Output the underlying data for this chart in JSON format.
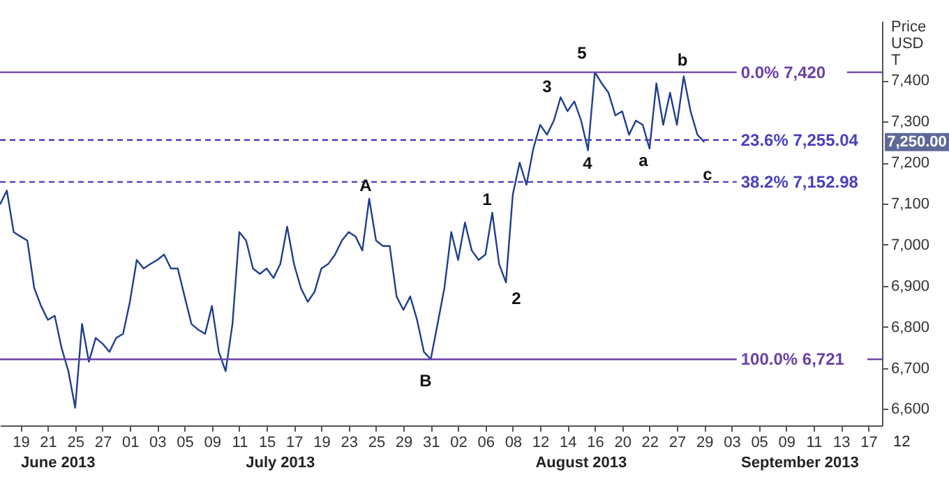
{
  "chart_data": {
    "type": "line",
    "ylabel": "Price USD T",
    "categories": [
      null,
      null,
      null,
      "19",
      null,
      null,
      null,
      "21",
      null,
      null,
      null,
      "25",
      null,
      null,
      null,
      "27",
      null,
      null,
      null,
      "01",
      null,
      null,
      null,
      "03",
      null,
      null,
      null,
      "05",
      null,
      null,
      null,
      "09",
      null,
      null,
      null,
      "11",
      null,
      null,
      null,
      "15",
      null,
      null,
      null,
      "17",
      null,
      null,
      null,
      "19",
      null,
      null,
      null,
      "23",
      null,
      null,
      null,
      "25",
      null,
      null,
      null,
      "29",
      null,
      null,
      null,
      "31",
      null,
      null,
      null,
      "02",
      null,
      null,
      null,
      "06",
      null,
      null,
      null,
      "08",
      null,
      null,
      null,
      "12",
      null,
      null,
      null,
      "14",
      null,
      null,
      null,
      "16",
      null,
      null,
      null,
      "20",
      null,
      null,
      null,
      "22",
      null,
      null,
      null,
      "27",
      null,
      null,
      null,
      "29",
      null,
      null,
      null,
      "03",
      null,
      null,
      null,
      "05",
      null,
      null,
      null,
      "09",
      null,
      null,
      null,
      "11",
      null,
      null,
      null,
      "13",
      null,
      null,
      null,
      "17",
      null
    ],
    "series": [
      {
        "color": "#1f3f8f",
        "values": [
          7098,
          7132,
          7031,
          7020,
          7010,
          6895,
          6851,
          6817,
          6827,
          6749,
          6692,
          6603,
          6807,
          6715,
          6773,
          6759,
          6739,
          6773,
          6783,
          6861,
          6963,
          6942,
          6953,
          6963,
          6976,
          6942,
          6942,
          6874,
          6807,
          6793,
          6783,
          6851,
          6739,
          6692,
          6807,
          7031,
          7010,
          6942,
          6929,
          6942,
          6919,
          6953,
          7044,
          6953,
          6895,
          6861,
          6885,
          6942,
          6953,
          6976,
          7010,
          7031,
          7020,
          6986,
          7112,
          7010,
          6997,
          6997,
          6874,
          6841,
          6874,
          6817,
          6739,
          6721,
          6807,
          6895,
          7031,
          6963,
          7054,
          6986,
          6963,
          6976,
          7078,
          6953,
          6908,
          7122,
          7200,
          7146,
          7234,
          7292,
          7268,
          7302,
          7359,
          7325,
          7349,
          7302,
          7230,
          7420,
          7393,
          7370,
          7315,
          7325,
          7268,
          7302,
          7292,
          7234,
          7393,
          7292,
          7370,
          7292,
          7410,
          7325,
          7268,
          7250,
          null,
          null,
          null,
          null,
          null,
          null,
          null,
          null,
          null,
          null,
          null,
          null,
          null,
          null,
          null,
          null,
          null,
          null,
          null,
          null,
          null,
          null,
          null,
          null,
          null
        ]
      }
    ],
    "ylim": [
      6560,
      7545
    ],
    "yticks": [
      {
        "value": 6600,
        "label": "6,600"
      },
      {
        "value": 6700,
        "label": "6,700"
      },
      {
        "value": 6800,
        "label": "6,800"
      },
      {
        "value": 6900,
        "label": "6,900"
      },
      {
        "value": 7000,
        "label": "7,000"
      },
      {
        "value": 7100,
        "label": "7,100"
      },
      {
        "value": 7200,
        "label": "7,200"
      },
      {
        "value": 7300,
        "label": "7,300"
      },
      {
        "value": 7400,
        "label": "7,400"
      }
    ],
    "grid": false,
    "ref_lines": [
      {
        "axis": "y",
        "value": 7420,
        "label": "0.0% 7,420",
        "color": "#6a3fa8",
        "line_style": "solid"
      },
      {
        "axis": "y",
        "value": 7255.04,
        "label": "23.6% 7,255.04",
        "color": "#4a3fc0",
        "line_style": "dashed"
      },
      {
        "axis": "y",
        "value": 7152.98,
        "label": "38.2% 7,152.98",
        "color": "#4a3fc0",
        "line_style": "dashed"
      },
      {
        "axis": "y",
        "value": 6721,
        "label": "100.0% 6,721",
        "color": "#6a3fa8",
        "line_style": "solid"
      }
    ],
    "annotations": [
      "A",
      "B",
      "1",
      "2",
      "3",
      "4",
      "5",
      "a",
      "b",
      "c",
      "7,250.00",
      "June 2013",
      "July 2013",
      "August 2013",
      "September 2013",
      "12"
    ]
  }
}
